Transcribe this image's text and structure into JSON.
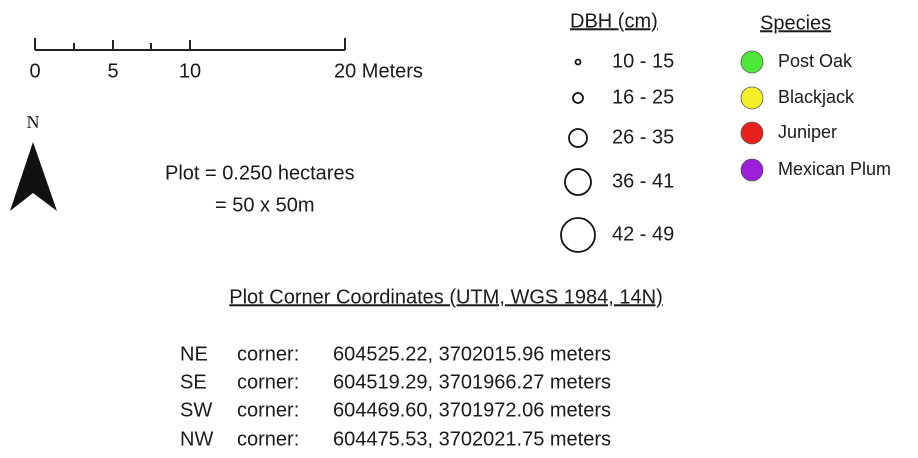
{
  "scale_bar": {
    "labels": [
      "0",
      "5",
      "10",
      "20 Meters"
    ]
  },
  "north_label": "N",
  "plot": {
    "area": "Plot = 0.250 hectares",
    "size": "= 50 x 50m"
  },
  "dbh": {
    "title": "DBH (cm)",
    "items": [
      "10 - 15",
      "16 - 25",
      "26 - 35",
      "36 - 41",
      "42 - 49"
    ]
  },
  "species": {
    "title": "Species",
    "items": [
      {
        "name": "Post Oak",
        "color": "#4ee83a"
      },
      {
        "name": "Blackjack",
        "color": "#f5f02a"
      },
      {
        "name": "Juniper",
        "color": "#e8201c"
      },
      {
        "name": "Mexican Plum",
        "color": "#9b1fd6"
      }
    ]
  },
  "coordinates": {
    "title": "Plot Corner Coordinates (UTM, WGS 1984, 14N)",
    "rows": [
      {
        "corner": "NE",
        "word": "corner:",
        "coords": "604525.22, 3702015.96 meters"
      },
      {
        "corner": "SE",
        "word": "corner:",
        "coords": "604519.29, 3701966.27 meters"
      },
      {
        "corner": "SW",
        "word": "corner:",
        "coords": "604469.60, 3701972.06 meters"
      },
      {
        "corner": "NW",
        "word": "corner:",
        "coords": "604475.53, 3702021.75 meters"
      }
    ]
  }
}
